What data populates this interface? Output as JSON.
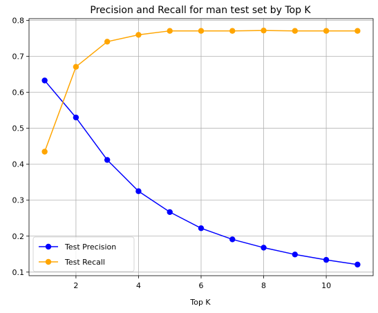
{
  "chart_data": {
    "type": "line",
    "title": "Precision and Recall for man test set by Top K",
    "xlabel": "Top K",
    "ylabel": "",
    "x": [
      1,
      2,
      3,
      4,
      5,
      6,
      7,
      8,
      9,
      10,
      11
    ],
    "xlim": [
      0.5,
      11.5
    ],
    "ylim": [
      0.09,
      0.805
    ],
    "xticks": [
      2,
      4,
      6,
      8,
      10
    ],
    "yticks": [
      0.1,
      0.2,
      0.3,
      0.4,
      0.5,
      0.6,
      0.7,
      0.8
    ],
    "grid": true,
    "legend_position": "lower-left",
    "series": [
      {
        "name": "Test Precision",
        "color": "#0000ff",
        "marker": "circle",
        "values": [
          0.633,
          0.53,
          0.412,
          0.325,
          0.267,
          0.222,
          0.191,
          0.168,
          0.149,
          0.134,
          0.121
        ]
      },
      {
        "name": "Test Recall",
        "color": "#ffa500",
        "marker": "circle",
        "values": [
          0.435,
          0.671,
          0.741,
          0.76,
          0.771,
          0.771,
          0.771,
          0.772,
          0.771,
          0.771,
          0.771
        ]
      }
    ]
  }
}
